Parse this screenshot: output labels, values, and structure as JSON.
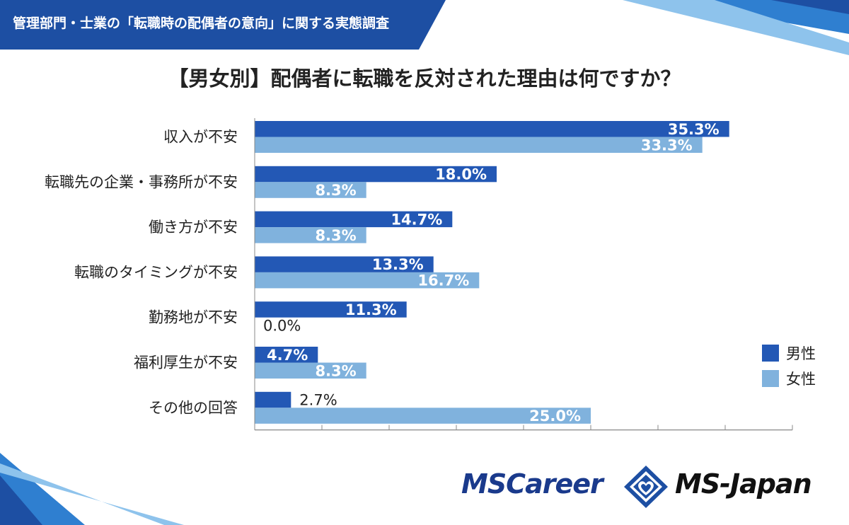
{
  "header": {
    "text": "管理部門・士業の「転職時の配偶者の意向」に関する実態調査"
  },
  "logo": {
    "left_text": "MSCareer",
    "right_text": "MS-Japan"
  },
  "colors": {
    "male": "#2358b5",
    "female": "#80b2dd",
    "banner": "#1d4fa3",
    "accent": "#2f7fd0"
  },
  "chart_data": {
    "type": "bar",
    "orientation": "horizontal",
    "title": "【男女別】配偶者に転職を反対された理由は何ですか？",
    "categories": [
      "収入が不安",
      "転職先の企業・事務所が不安",
      "働き方が不安",
      "転職のタイミングが不安",
      "勤務地が不安",
      "福利厚生が不安",
      "その他の回答"
    ],
    "series": [
      {
        "name": "男性",
        "values": [
          35.3,
          18.0,
          14.7,
          13.3,
          11.3,
          4.7,
          2.7
        ],
        "labels": [
          "35.3%",
          "18.0%",
          "14.7%",
          "13.3%",
          "11.3%",
          "4.7%",
          "2.7%"
        ]
      },
      {
        "name": "女性",
        "values": [
          33.3,
          8.3,
          8.3,
          16.7,
          0.0,
          8.3,
          25.0
        ],
        "labels": [
          "33.3%",
          "8.3%",
          "8.3%",
          "16.7%",
          "0.0%",
          "8.3%",
          "25.0%"
        ]
      }
    ],
    "xlim": [
      0,
      40
    ],
    "xlabel": "",
    "ylabel": "",
    "legend": "right",
    "grid": false
  }
}
